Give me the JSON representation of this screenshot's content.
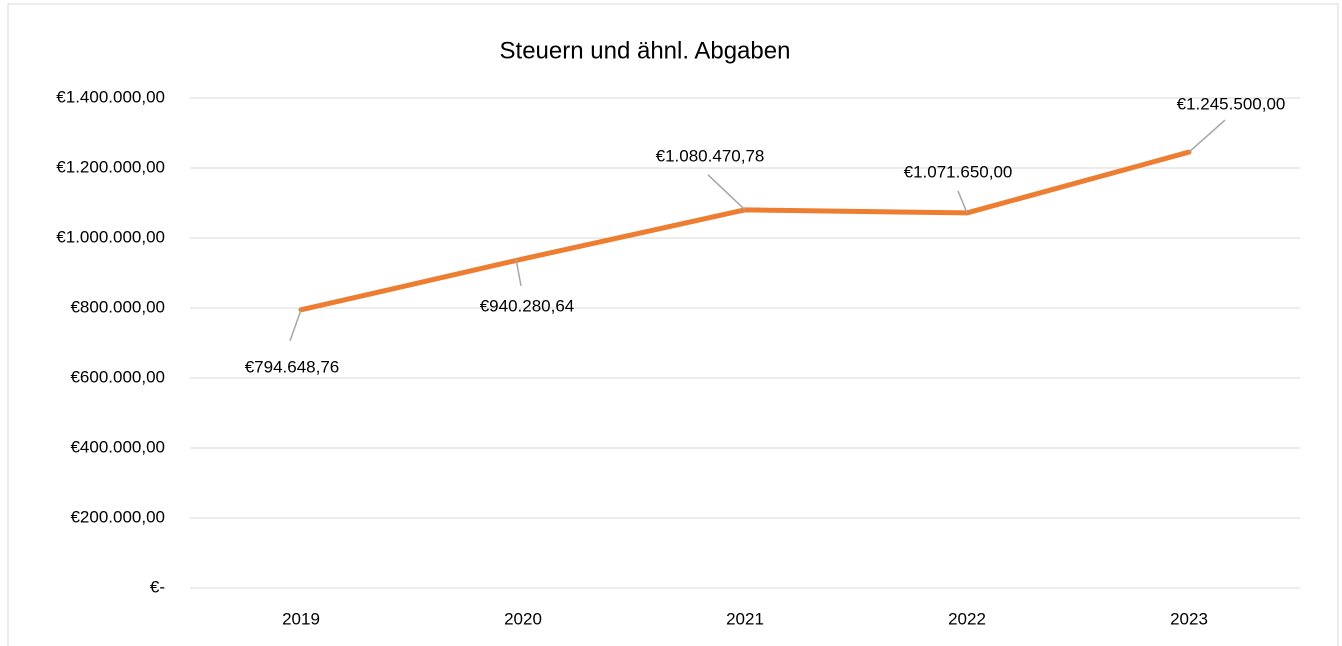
{
  "chart_data": {
    "type": "line",
    "title": "Steuern und ähnl. Abgaben",
    "categories": [
      "2019",
      "2020",
      "2021",
      "2022",
      "2023"
    ],
    "series": [
      {
        "name": "Steuern und ähnl. Abgaben",
        "color": "#ed7d31",
        "values": [
          794648.76,
          940280.64,
          1080470.78,
          1071650,
          1245500
        ],
        "value_labels": [
          "€794.648,76",
          "€940.280,64",
          "€1.080.470,78",
          "€1.071.650,00",
          "€1.245.500,00"
        ]
      }
    ],
    "ylim": [
      0,
      1400000
    ],
    "yticks": [
      {
        "value": 0,
        "label": "€-"
      },
      {
        "value": 200000,
        "label": "€200.000,00"
      },
      {
        "value": 400000,
        "label": "€400.000,00"
      },
      {
        "value": 600000,
        "label": "€600.000,00"
      },
      {
        "value": 800000,
        "label": "€800.000,00"
      },
      {
        "value": 1000000,
        "label": "€1.000.000,00"
      },
      {
        "value": 1200000,
        "label": "€1.200.000,00"
      },
      {
        "value": 1400000,
        "label": "€1.400.000,00"
      }
    ],
    "grid": true
  }
}
